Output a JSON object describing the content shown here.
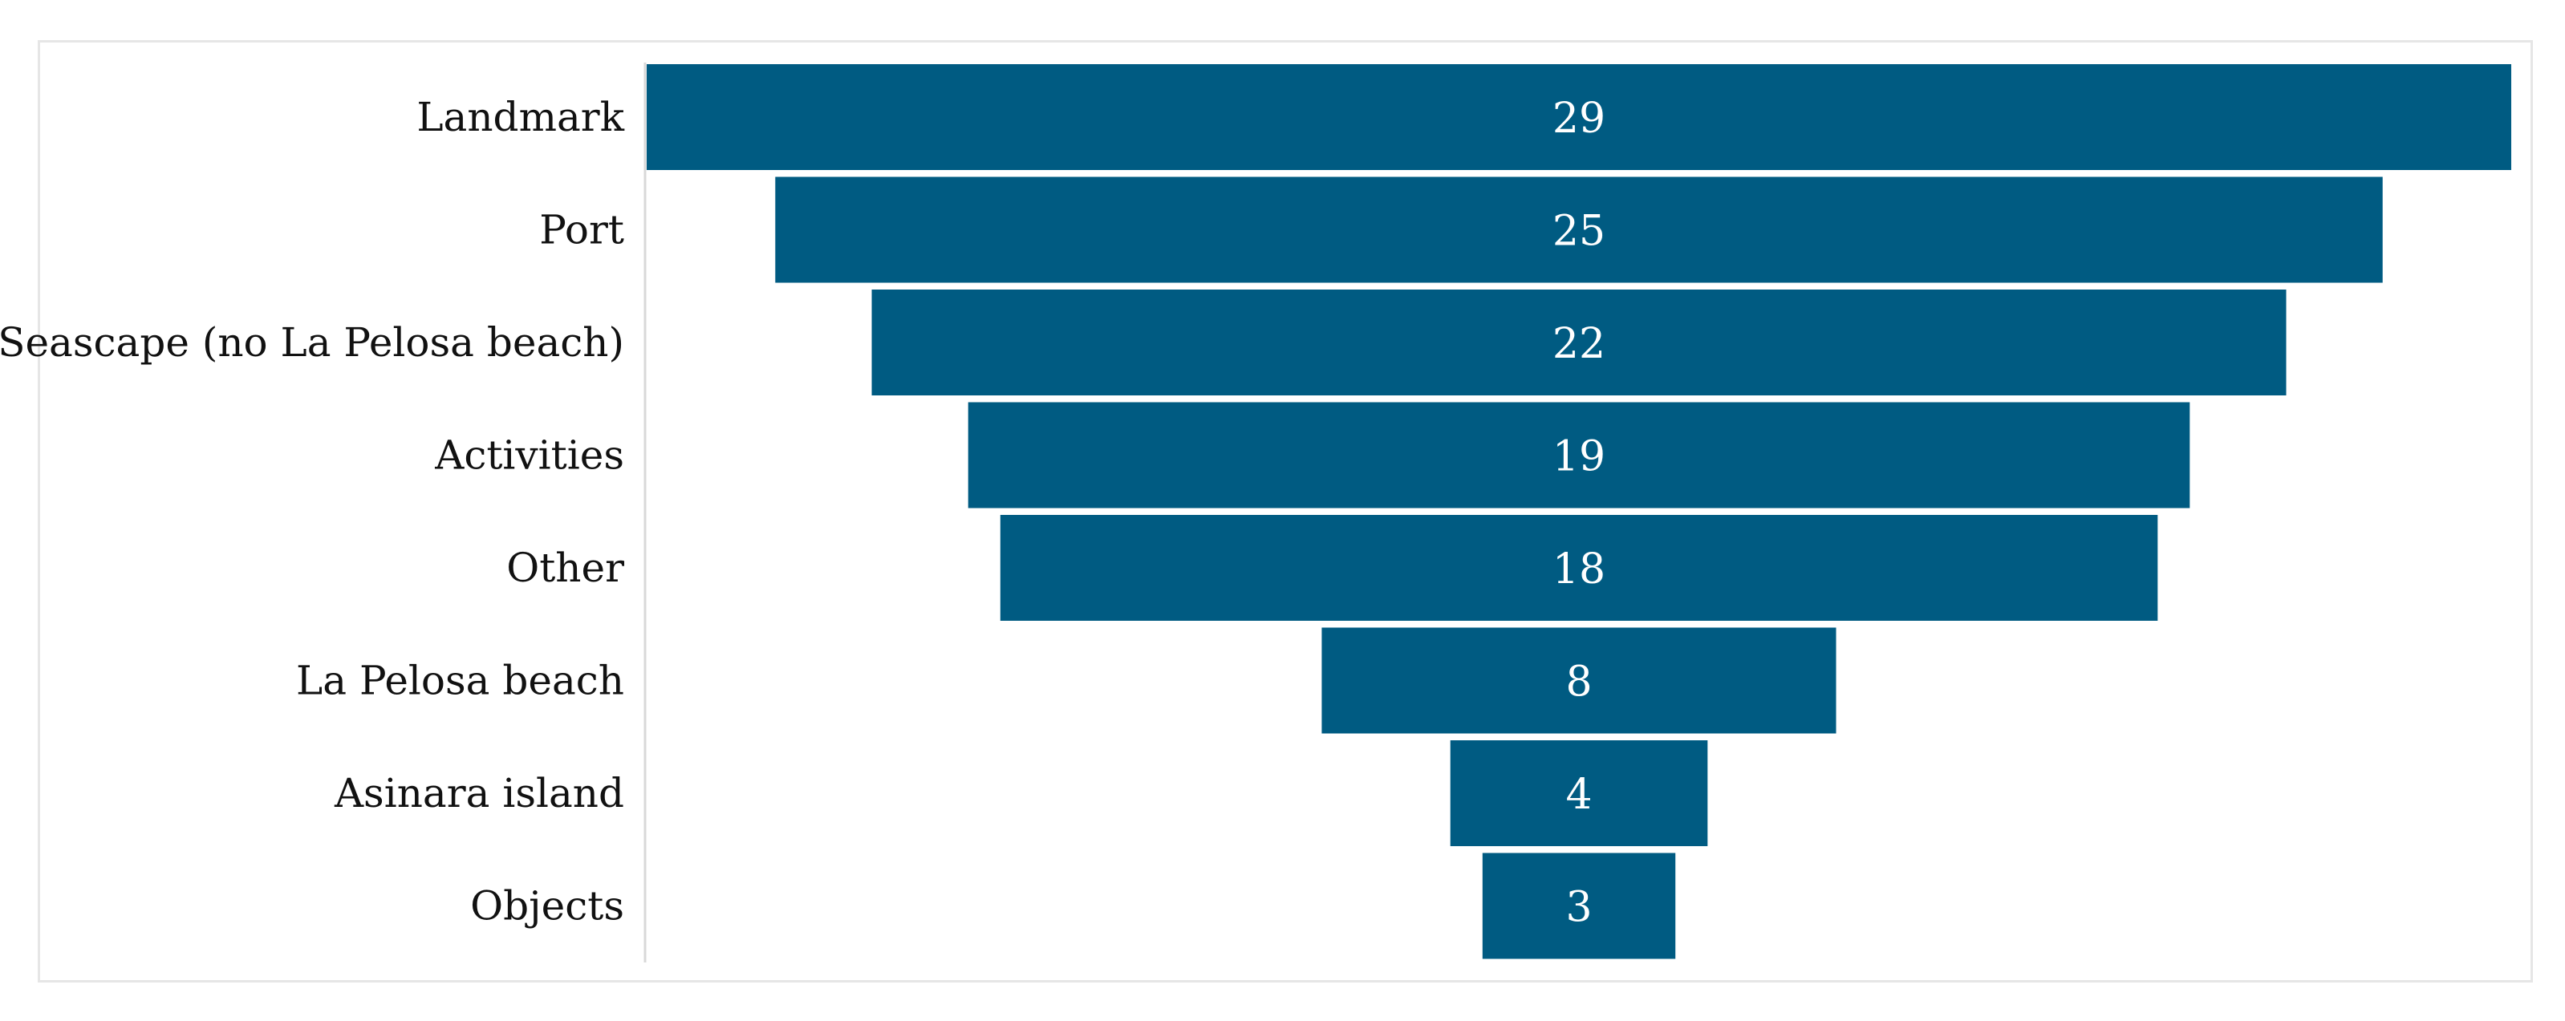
{
  "chart_data": {
    "type": "bar",
    "subtype": "funnel",
    "categories": [
      "Landmark",
      "Port",
      "Seascape (no La Pelosa beach)",
      "Activities",
      "Other",
      "La Pelosa beach",
      "Asinara island",
      "Objects"
    ],
    "values": [
      29,
      25,
      22,
      19,
      18,
      8,
      4,
      3
    ],
    "title": "",
    "xlabel": "",
    "ylabel": "",
    "grid": false,
    "legend": "none",
    "bar_color": "#005b82",
    "label_color": "#ffffff"
  }
}
